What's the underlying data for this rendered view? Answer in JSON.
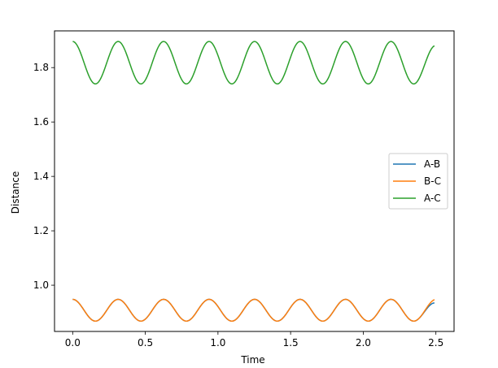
{
  "chart_data": {
    "type": "line",
    "title": "",
    "xlabel": "Time",
    "ylabel": "Distance",
    "xlim": [
      -0.125,
      2.625
    ],
    "ylim": [
      0.83,
      1.935
    ],
    "xticks": [
      0.0,
      0.5,
      1.0,
      1.5,
      2.0,
      2.5
    ],
    "xtick_labels": [
      "0.0",
      "0.5",
      "1.0",
      "1.5",
      "2.0",
      "2.5"
    ],
    "yticks": [
      1.0,
      1.2,
      1.4,
      1.6,
      1.8
    ],
    "ytick_labels": [
      "1.0",
      "1.2",
      "1.4",
      "1.6",
      "1.8"
    ],
    "grid": false,
    "legend_position": "center-right",
    "x_range": [
      0.0,
      2.49
    ],
    "series": [
      {
        "name": "A-B",
        "color": "#1f77b4",
        "mean": 0.908,
        "amplitude": 0.04,
        "period": 0.313,
        "phase_at_start": "max",
        "end_value": 0.935
      },
      {
        "name": "B-C",
        "color": "#ff7f0e",
        "mean": 0.908,
        "amplitude": 0.04,
        "period": 0.313,
        "phase_at_start": "max",
        "end_value": 0.947
      },
      {
        "name": "A-C",
        "color": "#2ca02c",
        "mean": 1.818,
        "amplitude": 0.078,
        "period": 0.313,
        "phase_at_start": "max",
        "end_value": 1.88
      }
    ]
  }
}
